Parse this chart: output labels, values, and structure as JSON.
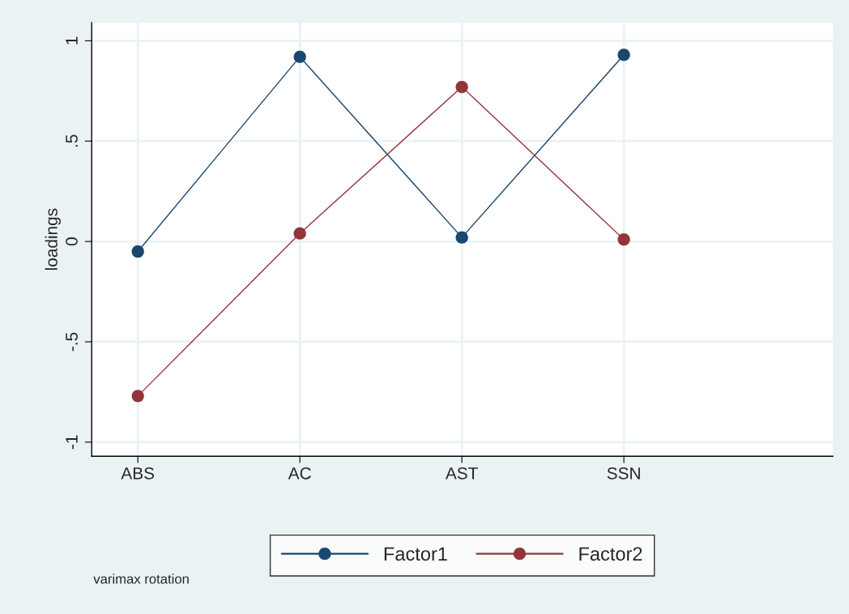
{
  "chart_data": {
    "type": "line",
    "ylabel": "loadings",
    "categories": [
      "ABS",
      "AC",
      "AST",
      "SSN"
    ],
    "ylim": [
      -1.07,
      1.09
    ],
    "yticks": [
      {
        "value": -1,
        "label": "-1"
      },
      {
        "value": -0.5,
        "label": "-.5"
      },
      {
        "value": 0,
        "label": "0"
      },
      {
        "value": 0.5,
        "label": ".5"
      },
      {
        "value": 1,
        "label": "1"
      }
    ],
    "series": [
      {
        "name": "Factor1",
        "color": "#1a476f",
        "values": [
          -0.05,
          0.92,
          0.02,
          0.93
        ]
      },
      {
        "name": "Factor2",
        "color": "#90353b",
        "values": [
          -0.77,
          0.04,
          0.77,
          0.01
        ]
      }
    ],
    "marker": "circle",
    "line_style": "solid",
    "grid": true,
    "legend": "bottom",
    "annotations": [
      "varimax rotation"
    ]
  }
}
